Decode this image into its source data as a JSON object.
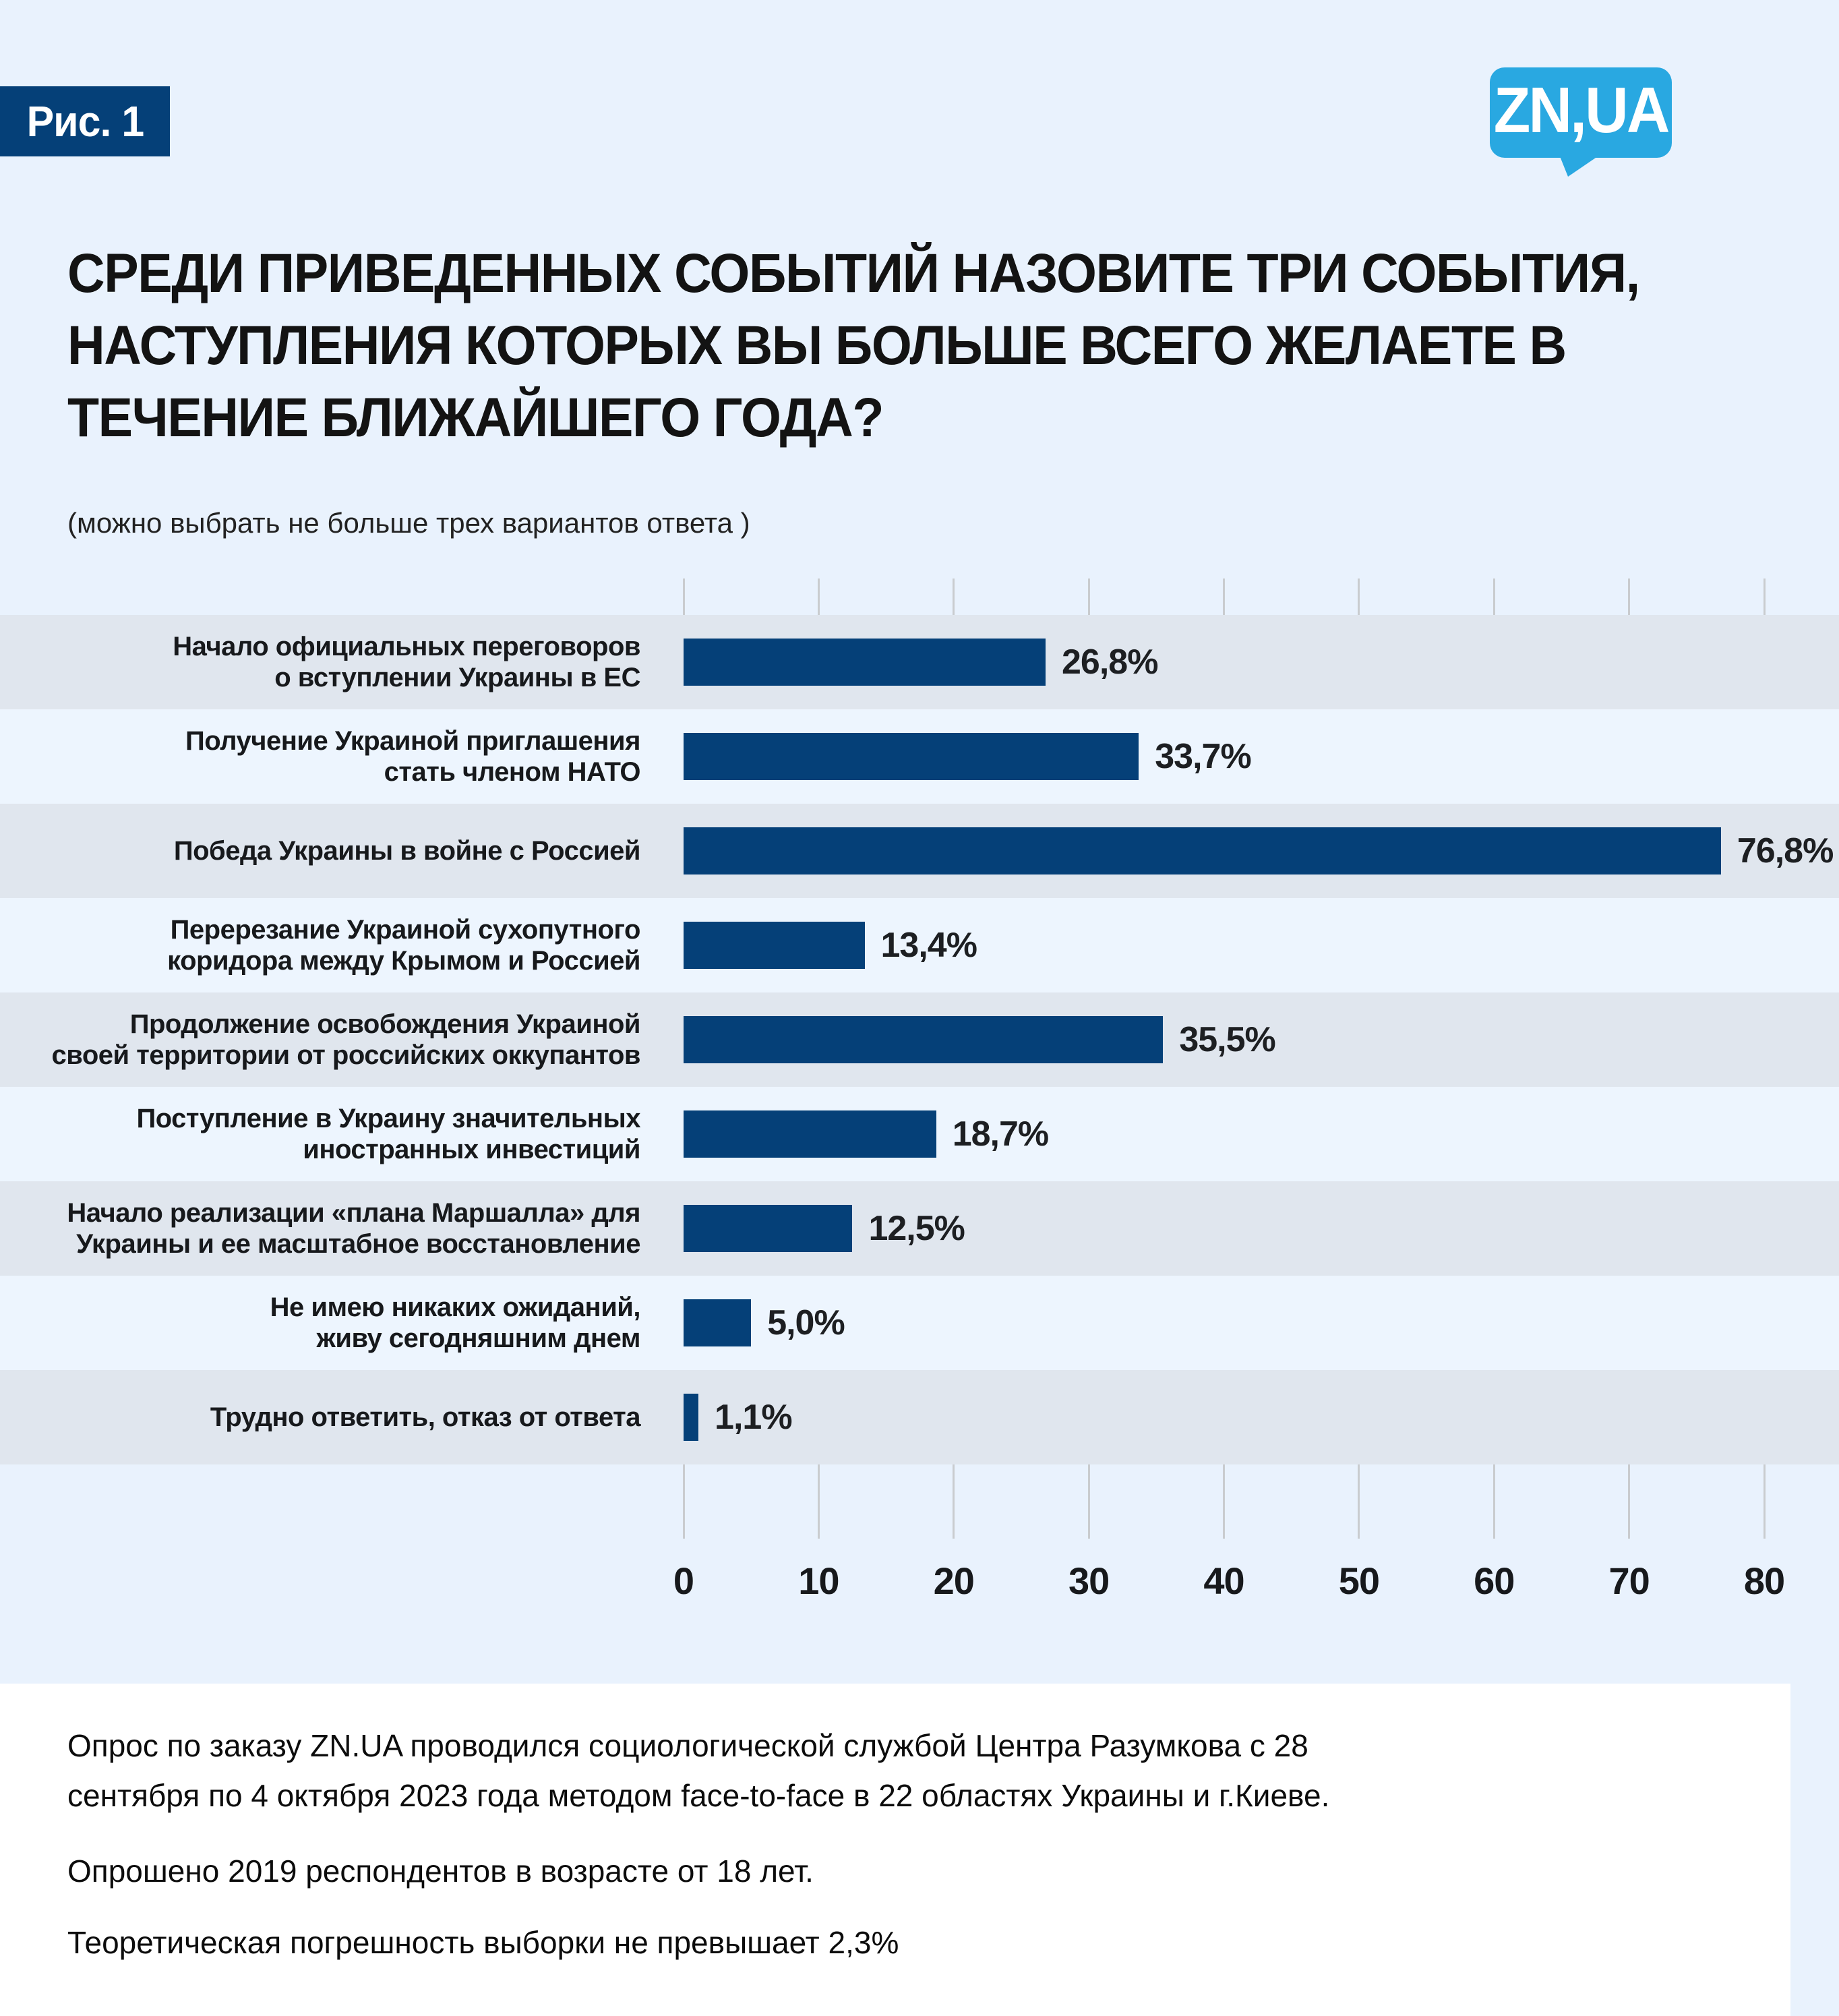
{
  "figure_label": "Рис. 1",
  "logo_text": "ZN,UA",
  "title_lines": [
    "СРЕДИ ПРИВЕДЕННЫХ СОБЫТИЙ НАЗОВИТЕ ТРИ СОБЫТИЯ,",
    "НАСТУПЛЕНИЯ КОТОРЫХ ВЫ БОЛЬШЕ ВСЕГО ЖЕЛАЕТЕ В",
    "ТЕЧЕНИЕ БЛИЖАЙШЕГО ГОДА?"
  ],
  "subtitle": "(можно выбрать не больше трех вариантов ответа )",
  "chart_data": {
    "type": "bar",
    "orientation": "horizontal",
    "categories": [
      "Начало официальных переговоров\nо вступлении Украины в ЕС",
      "Получение Украиной приглашения\nстать членом НАТО",
      "Победа Украины в войне с Россией",
      "Перерезание Украиной сухопутного\nкоридора между Крымом и Россией",
      "Продолжение освобождения Украиной\nсвоей территории от российских оккупантов",
      "Поступление в Украину значительных\nиностранных инвестиций",
      "Начало реализации «плана Маршалла» для\nУкраины и ее масштабное восстановление",
      "Не имею никаких ожиданий,\nживу сегодняшним днем",
      "Трудно ответить, отказ от ответа"
    ],
    "values": [
      26.8,
      33.7,
      76.8,
      13.4,
      35.5,
      18.7,
      12.5,
      5.0,
      1.1
    ],
    "value_labels": [
      "26,8%",
      "33,7%",
      "76,8%",
      "13,4%",
      "35,5%",
      "18,7%",
      "12,5%",
      "5,0%",
      "1,1%"
    ],
    "xlabel": "",
    "ylabel": "",
    "xticks": [
      0,
      10,
      20,
      30,
      40,
      50,
      60,
      70,
      80
    ],
    "xlim": [
      0,
      80
    ],
    "grid": true,
    "legend": "none",
    "bar_color": "#054078",
    "row_band_color_odd": "#e0e6ee",
    "row_band_color_even": "#edf5fe"
  },
  "footer": {
    "line1": "Опрос по заказу ZN.UA проводился социологической службой Центра Разумкова с 28\nсентября по 4 октября 2023 года методом face-to-face в 22 областях Украины и г.Киеве.",
    "line2": "Опрошено 2019 респондентов в возрасте от 18 лет.",
    "line3": "Теоретическая погрешность выборки не превышает 2,3%"
  },
  "colors": {
    "page_background": "#e9f2fd",
    "badge_background": "#054078",
    "logo_background": "#29a8e1",
    "bar": "#054078",
    "gridline": "#c9cccf",
    "text_dark": "#17191c",
    "footer_background": "#ffffff"
  }
}
